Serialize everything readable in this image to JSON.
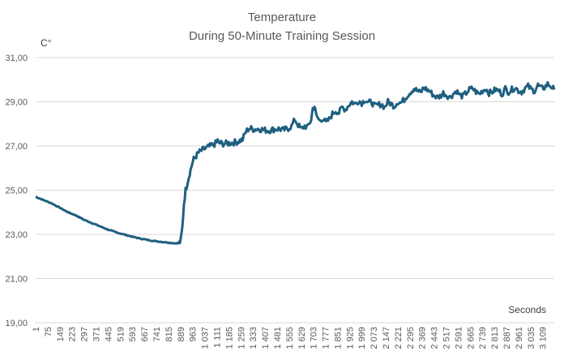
{
  "chart_data": {
    "type": "line",
    "title": [
      "Temperature",
      "During 50-Minute Training Session"
    ],
    "ylabel": "C°",
    "xlabel": "Seconds",
    "ylim": [
      19,
      31
    ],
    "yticks": [
      "19,00",
      "21,00",
      "23,00",
      "25,00",
      "27,00",
      "29,00",
      "31,00"
    ],
    "ytick_values": [
      19,
      21,
      23,
      25,
      27,
      29,
      31
    ],
    "xlim": [
      1,
      3180
    ],
    "xticks": [
      "1",
      "75",
      "149",
      "223",
      "297",
      "371",
      "445",
      "519",
      "593",
      "667",
      "741",
      "815",
      "889",
      "963",
      "1 037",
      "1 111",
      "1 185",
      "1 259",
      "1 333",
      "1 407",
      "1 481",
      "1 555",
      "1 629",
      "1 703",
      "1 777",
      "1 851",
      "1 925",
      "1 999",
      "2 073",
      "2 147",
      "2 221",
      "2 295",
      "2 369",
      "2 443",
      "2 517",
      "2 591",
      "2 665",
      "2 739",
      "2 813",
      "2 887",
      "2 961",
      "3 035",
      "3 109"
    ],
    "xtick_values": [
      1,
      75,
      149,
      223,
      297,
      371,
      445,
      519,
      593,
      667,
      741,
      815,
      889,
      963,
      1037,
      1111,
      1185,
      1259,
      1333,
      1407,
      1481,
      1555,
      1629,
      1703,
      1777,
      1851,
      1925,
      1999,
      2073,
      2147,
      2221,
      2295,
      2369,
      2443,
      2517,
      2591,
      2665,
      2739,
      2813,
      2887,
      2961,
      3035,
      3109
    ],
    "grid": true,
    "series": [
      {
        "color": "#1f5f80",
        "x": [
          1,
          50,
          100,
          150,
          200,
          250,
          300,
          350,
          400,
          450,
          500,
          550,
          600,
          650,
          700,
          750,
          800,
          850,
          870,
          880,
          890,
          900,
          910,
          920,
          930,
          940,
          950,
          960,
          970,
          980,
          990,
          1000,
          1030,
          1060,
          1090,
          1110,
          1115,
          1120,
          1150,
          1180,
          1210,
          1240,
          1270,
          1290,
          1310,
          1340,
          1370,
          1400,
          1430,
          1460,
          1490,
          1520,
          1550,
          1570,
          1590,
          1610,
          1630,
          1650,
          1670,
          1690,
          1700,
          1710,
          1720,
          1740,
          1760,
          1780,
          1800,
          1820,
          1840,
          1860,
          1880,
          1900,
          1920,
          1940,
          1960,
          1980,
          2000,
          2020,
          2040,
          2060,
          2080,
          2100,
          2120,
          2140,
          2160,
          2180,
          2200,
          2220,
          2240,
          2260,
          2280,
          2300,
          2320,
          2340,
          2360,
          2380,
          2400,
          2420,
          2440,
          2460,
          2480,
          2500,
          2520,
          2540,
          2560,
          2580,
          2600,
          2620,
          2640,
          2660,
          2680,
          2700,
          2720,
          2740,
          2760,
          2780,
          2800,
          2820,
          2840,
          2860,
          2880,
          2900,
          2920,
          2940,
          2960,
          2980,
          3000,
          3020,
          3040,
          3060,
          3080,
          3100,
          3120,
          3140,
          3160,
          3180
        ],
        "y": [
          24.7,
          24.55,
          24.4,
          24.2,
          24.0,
          23.85,
          23.65,
          23.5,
          23.35,
          23.2,
          23.08,
          22.98,
          22.88,
          22.8,
          22.73,
          22.68,
          22.64,
          22.6,
          22.6,
          22.6,
          22.7,
          23.3,
          24.4,
          25.0,
          25.3,
          25.6,
          25.9,
          26.2,
          26.4,
          26.5,
          26.6,
          26.7,
          26.85,
          26.95,
          27.05,
          27.15,
          27.3,
          27.15,
          27.1,
          27.12,
          27.15,
          27.2,
          27.3,
          27.65,
          27.8,
          27.75,
          27.78,
          27.72,
          27.7,
          27.75,
          27.78,
          27.72,
          27.8,
          27.9,
          28.2,
          27.95,
          27.75,
          27.9,
          27.85,
          28.2,
          28.7,
          28.8,
          28.4,
          28.15,
          28.25,
          28.05,
          28.2,
          28.45,
          28.6,
          28.5,
          28.75,
          28.65,
          28.85,
          29.0,
          28.9,
          29.05,
          28.95,
          29.1,
          28.95,
          29.0,
          28.8,
          28.85,
          28.9,
          28.75,
          29.0,
          28.9,
          28.8,
          29.0,
          28.95,
          29.1,
          29.3,
          29.45,
          29.6,
          29.5,
          29.4,
          29.65,
          29.55,
          29.45,
          29.3,
          29.2,
          29.25,
          29.4,
          29.3,
          29.2,
          29.35,
          29.5,
          29.3,
          29.25,
          29.4,
          29.55,
          29.6,
          29.45,
          29.35,
          29.5,
          29.6,
          29.4,
          29.45,
          29.55,
          29.5,
          29.35,
          29.6,
          29.45,
          29.55,
          29.65,
          29.5,
          29.45,
          29.6,
          29.7,
          29.55,
          29.5,
          29.75,
          29.6,
          29.65,
          29.8,
          29.7,
          29.55
        ]
      }
    ]
  }
}
